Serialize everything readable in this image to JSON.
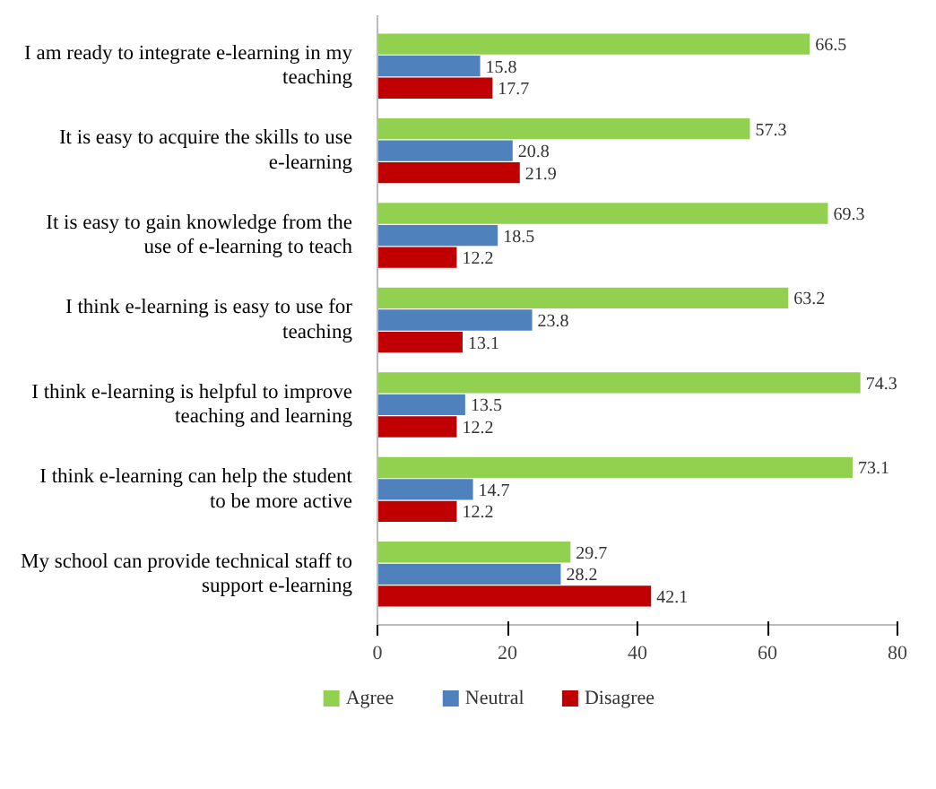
{
  "chart_data": {
    "type": "bar",
    "orientation": "horizontal",
    "categories": [
      "I am ready to integrate e-learning in my teaching",
      "It is easy to acquire the skills to use e-learning",
      "It is easy to gain knowledge from the use of e-learning to teach",
      "I think e-learning is easy to use for teaching",
      "I think e-learning is helpful to improve teaching and learning",
      "I think e-learning can help the student to be more active",
      "My school can provide technical staff to support e-learning"
    ],
    "series": [
      {
        "name": "Agree",
        "color": "#92d050",
        "values": [
          66.5,
          57.3,
          69.3,
          63.2,
          74.3,
          73.1,
          29.7
        ]
      },
      {
        "name": "Neutral",
        "color": "#4f81bd",
        "values": [
          15.8,
          20.8,
          18.5,
          23.8,
          13.5,
          14.7,
          28.2
        ]
      },
      {
        "name": "Disagree",
        "color": "#c00000",
        "values": [
          17.7,
          21.9,
          12.2,
          13.1,
          12.2,
          12.2,
          42.1
        ]
      }
    ],
    "xlim": [
      0,
      80
    ],
    "xticks": [
      0,
      20,
      40,
      60,
      80
    ],
    "grid": false,
    "legend": "bottom",
    "data_labels": true
  }
}
